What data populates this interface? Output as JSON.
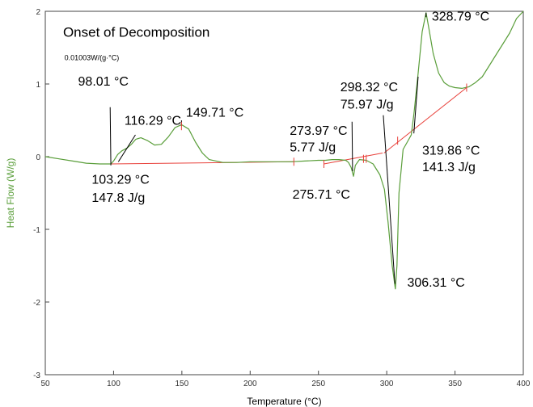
{
  "chart_data": {
    "type": "line",
    "title": "Onset of Decomposition",
    "scale_note": "0.01003W/(g·°C)",
    "xlabel": "Temperature (°C)",
    "ylabel": "Heat Flow (W/g)",
    "xlim": [
      50,
      400
    ],
    "ylim": [
      -3,
      2
    ],
    "xticks": [
      50,
      100,
      150,
      200,
      250,
      300,
      350,
      400
    ],
    "yticks": [
      -3,
      -2,
      -1,
      0,
      1,
      2
    ],
    "grid": false,
    "colors": {
      "curve": "#5a9e3a",
      "baseline": "#e8403a",
      "axis": "#444444",
      "ylabel": "#5a9e3a"
    },
    "series": [
      {
        "x": [
          50,
          60,
          70,
          80,
          90,
          95,
          98,
          100,
          103,
          106,
          110,
          113,
          116.3,
          120,
          125,
          130,
          135,
          140,
          145,
          149.7,
          155,
          160,
          165,
          170,
          180,
          190,
          200,
          210,
          220,
          230,
          240,
          250,
          255,
          260,
          265,
          270,
          272,
          274,
          275.7,
          277,
          280,
          285,
          290,
          295,
          298.3,
          301,
          304,
          306.3,
          307.5,
          309,
          312,
          315,
          318,
          320,
          323,
          326,
          328.8,
          331,
          334,
          338,
          342,
          346,
          350,
          355,
          360,
          365,
          370,
          375,
          380,
          385,
          390,
          395,
          400
        ],
        "y": [
          0.0,
          -0.03,
          -0.06,
          -0.09,
          -0.1,
          -0.1,
          -0.1,
          -0.06,
          0.03,
          0.08,
          0.12,
          0.17,
          0.24,
          0.26,
          0.22,
          0.16,
          0.17,
          0.27,
          0.4,
          0.44,
          0.38,
          0.2,
          0.05,
          -0.04,
          -0.08,
          -0.08,
          -0.07,
          -0.07,
          -0.07,
          -0.07,
          -0.06,
          -0.05,
          -0.05,
          -0.04,
          -0.04,
          -0.05,
          -0.08,
          -0.15,
          -0.27,
          -0.12,
          -0.04,
          -0.05,
          -0.1,
          -0.25,
          -0.45,
          -0.9,
          -1.5,
          -1.82,
          -1.5,
          -0.5,
          0.1,
          0.2,
          0.3,
          0.6,
          1.15,
          1.72,
          1.98,
          1.75,
          1.42,
          1.15,
          1.02,
          0.97,
          0.95,
          0.94,
          0.96,
          1.02,
          1.1,
          1.25,
          1.4,
          1.55,
          1.7,
          1.9,
          2.0
        ]
      }
    ],
    "baselines": [
      {
        "x": [
          98.01,
          232
        ],
        "y": [
          -0.1,
          -0.07
        ]
      },
      {
        "x": [
          254,
          297
        ],
        "y": [
          -0.1,
          0.05
        ]
      },
      {
        "x": [
          298,
          358.5
        ],
        "y": [
          0.05,
          0.95
        ]
      }
    ],
    "annotations": [
      {
        "text": "Onset of Decomposition",
        "x": 63,
        "y": 1.65,
        "cls": "title"
      },
      {
        "text": "98.01 °C",
        "x": 74,
        "y": 0.98,
        "cls": "ann"
      },
      {
        "text": "116.29 °C",
        "x": 108,
        "y": 0.44,
        "cls": "ann"
      },
      {
        "text": "149.71 °C",
        "x": 153,
        "y": 0.55,
        "cls": "ann"
      },
      {
        "text": "103.29 °C",
        "x": 84,
        "y": -0.37,
        "cls": "ann"
      },
      {
        "text": "147.8 J/g",
        "x": 84,
        "y": -0.62,
        "cls": "ann"
      },
      {
        "text": "273.97 °C",
        "x": 229,
        "y": 0.3,
        "cls": "ann"
      },
      {
        "text": "5.77 J/g",
        "x": 229,
        "y": 0.07,
        "cls": "ann"
      },
      {
        "text": "298.32 °C",
        "x": 266,
        "y": 0.9,
        "cls": "ann"
      },
      {
        "text": "75.97 J/g",
        "x": 266,
        "y": 0.66,
        "cls": "ann"
      },
      {
        "text": "275.71 °C",
        "x": 231,
        "y": -0.58,
        "cls": "ann"
      },
      {
        "text": "319.86 °C",
        "x": 326,
        "y": 0.03,
        "cls": "ann"
      },
      {
        "text": "141.3 J/g",
        "x": 326,
        "y": -0.2,
        "cls": "ann"
      },
      {
        "text": "306.31 °C",
        "x": 315,
        "y": -1.79,
        "cls": "ann"
      },
      {
        "text": "328.79 °C",
        "x": 333,
        "y": 1.87,
        "cls": "ann"
      }
    ],
    "pointers": [
      {
        "from": [
          97.5,
          0.68
        ],
        "to": [
          98.01,
          -0.12
        ]
      },
      {
        "from": [
          116.0,
          0.3
        ],
        "to": [
          103.5,
          -0.07
        ]
      },
      {
        "from": [
          149.71,
          0.5
        ],
        "to": [
          149.71,
          0.42
        ]
      },
      {
        "from": [
          274.6,
          0.48
        ],
        "to": [
          275.0,
          -0.2
        ]
      },
      {
        "from": [
          297.5,
          0.57
        ],
        "to": [
          306.0,
          -1.75
        ]
      },
      {
        "from": [
          328.79,
          1.98
        ],
        "to": [
          328.79,
          1.92
        ]
      },
      {
        "from": [
          319.86,
          0.32
        ],
        "to": [
          323.0,
          1.1
        ]
      }
    ],
    "markers": [
      {
        "x": 232,
        "y": -0.07
      },
      {
        "x": 254,
        "y": -0.1
      },
      {
        "x": 283,
        "y": -0.03
      },
      {
        "x": 285,
        "y": -0.03
      },
      {
        "x": 308,
        "y": 0.22
      },
      {
        "x": 358.5,
        "y": 0.95
      },
      {
        "x": 149.71,
        "y": 0.42
      }
    ]
  }
}
